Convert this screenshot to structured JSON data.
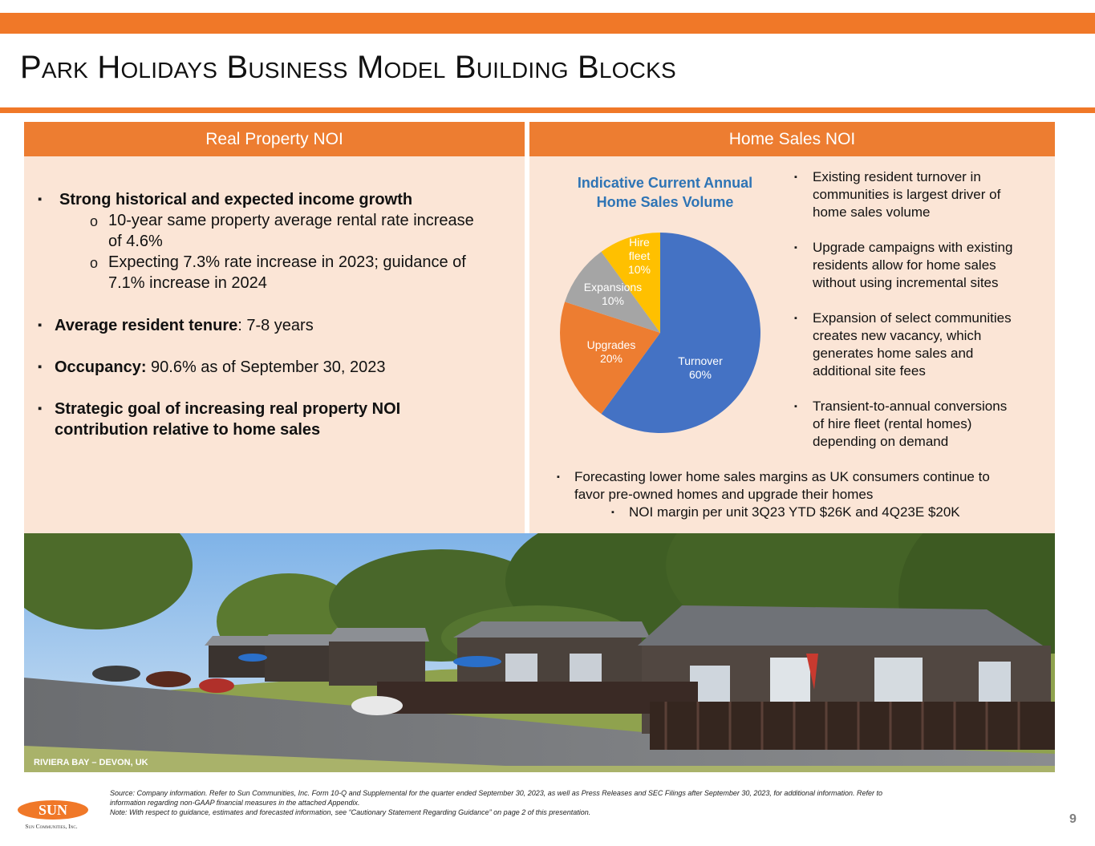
{
  "page": {
    "title": "Park Holidays Business Model Building Blocks",
    "page_number": "9"
  },
  "left_panel": {
    "header": "Real Property NOI",
    "bullet1": {
      "bold": "Strong historical and expected income growth"
    },
    "sub1_line1": "10-year same property average rental rate increase",
    "sub1_line2": "of 4.6%",
    "sub2_line1": "Expecting 7.3% rate increase in 2023; guidance of",
    "sub2_line2": "7.1% increase in 2024",
    "bullet2": {
      "bold": "Average resident tenure",
      "rest": ": 7-8 years"
    },
    "bullet3": {
      "bold": "Occupancy:",
      "rest": " 90.6% as of September 30, 2023"
    },
    "bullet4": {
      "line1": "Strategic goal of increasing real property NOI",
      "line2": "contribution relative to home sales"
    }
  },
  "right_panel": {
    "header": "Home Sales NOI",
    "chart_title_line1": "Indicative Current Annual",
    "chart_title_line2": "Home Sales Volume",
    "bullets": [
      {
        "lines": [
          "Existing resident turnover in",
          "communities is largest driver of",
          "home sales volume"
        ]
      },
      {
        "lines": [
          "Upgrade campaigns with existing",
          "residents allow for home sales",
          "without using incremental sites"
        ]
      },
      {
        "lines": [
          "Expansion of select communities",
          "creates new vacancy, which",
          "generates home sales and",
          "additional site fees"
        ]
      },
      {
        "lines": [
          "Transient-to-annual conversions",
          "of hire fleet (rental homes)",
          "depending on demand"
        ]
      }
    ],
    "bottom_bullet": {
      "line1": "Forecasting lower home sales margins as UK consumers continue to",
      "line2": "favor pre-owned homes and upgrade their homes"
    },
    "bottom_sub": "NOI margin per unit 3Q23 YTD $26K and 4Q23E $20K"
  },
  "chart_data": {
    "type": "pie",
    "title": "Indicative Current Annual Home Sales Volume",
    "slices": [
      {
        "name": "Turnover",
        "label_lines": [
          "Turnover",
          "60%"
        ],
        "value": 60,
        "color": "#4472C4",
        "label_color": "#ffffff"
      },
      {
        "name": "Upgrades",
        "label_lines": [
          "Upgrades",
          "20%"
        ],
        "value": 20,
        "color": "#ED7D31",
        "label_color": "#ffffff"
      },
      {
        "name": "Expansions",
        "label_lines": [
          "Expansions",
          "10%"
        ],
        "value": 10,
        "color": "#A5A5A5",
        "label_color": "#ffffff"
      },
      {
        "name": "Hire fleet",
        "label_lines": [
          "Hire",
          "fleet",
          "10%"
        ],
        "value": 10,
        "color": "#FFC000",
        "label_color": "#ffffff"
      }
    ]
  },
  "photo": {
    "caption": "RIVIERA BAY – DEVON, UK"
  },
  "footnote": {
    "line1": "Source: Company information. Refer to Sun Communities, Inc. Form 10-Q and Supplemental for the quarter ended September 30, 2023, as well as Press Releases and SEC Filings after September 30, 2023, for additional information. Refer to",
    "line2": "information regarding non-GAAP financial measures in the attached Appendix.",
    "line3": "Note: With respect to guidance, estimates and forecasted information, see “Cautionary Statement Regarding Guidance” on page 2 of this presentation."
  },
  "logo": {
    "wordmark": "SUN",
    "subtext": "Sun Communities, Inc."
  }
}
